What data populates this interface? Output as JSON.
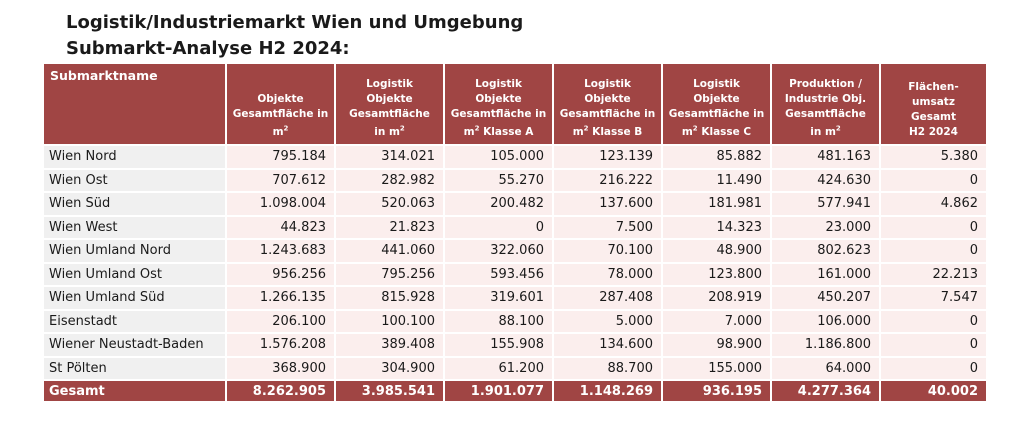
{
  "title": {
    "line1": "Logistik/Industriemarkt Wien und Umgebung",
    "line2": "Submarkt-Analyse H2 2024:"
  },
  "table": {
    "headers": [
      {
        "lines": [
          "Submarktname"
        ]
      },
      {
        "lines": [
          "Objekte",
          "Gesamtfläche in",
          "m²"
        ]
      },
      {
        "lines": [
          "Logistik",
          "Objekte",
          "Gesamtfläche",
          "in m²"
        ]
      },
      {
        "lines": [
          "Logistik",
          "Objekte",
          "Gesamtfläche in",
          "m² Klasse A"
        ]
      },
      {
        "lines": [
          "Logistik",
          "Objekte",
          "Gesamtfläche in",
          "m² Klasse B"
        ]
      },
      {
        "lines": [
          "Logistik",
          "Objekte",
          "Gesamtfläche in",
          "m² Klasse C"
        ]
      },
      {
        "lines": [
          "Produktion /",
          "Industrie Obj.",
          "Gesamtfläche",
          "in m²"
        ]
      },
      {
        "lines": [
          "Flächen-",
          "umsatz",
          "Gesamt",
          "H2 2024"
        ]
      }
    ],
    "rows": [
      [
        "Wien Nord",
        "795.184",
        "314.021",
        "105.000",
        "123.139",
        "85.882",
        "481.163",
        "5.380"
      ],
      [
        "Wien Ost",
        "707.612",
        "282.982",
        "55.270",
        "216.222",
        "11.490",
        "424.630",
        "0"
      ],
      [
        "Wien Süd",
        "1.098.004",
        "520.063",
        "200.482",
        "137.600",
        "181.981",
        "577.941",
        "4.862"
      ],
      [
        "Wien West",
        "44.823",
        "21.823",
        "0",
        "7.500",
        "14.323",
        "23.000",
        "0"
      ],
      [
        "Wien Umland Nord",
        "1.243.683",
        "441.060",
        "322.060",
        "70.100",
        "48.900",
        "802.623",
        "0"
      ],
      [
        "Wien Umland Ost",
        "956.256",
        "795.256",
        "593.456",
        "78.000",
        "123.800",
        "161.000",
        "22.213"
      ],
      [
        "Wien Umland Süd",
        "1.266.135",
        "815.928",
        "319.601",
        "287.408",
        "208.919",
        "450.207",
        "7.547"
      ],
      [
        "Eisenstadt",
        "206.100",
        "100.100",
        "88.100",
        "5.000",
        "7.000",
        "106.000",
        "0"
      ],
      [
        "Wiener Neustadt-Baden",
        "1.576.208",
        "389.408",
        "155.908",
        "134.600",
        "98.900",
        "1.186.800",
        "0"
      ],
      [
        "St Pölten",
        "368.900",
        "304.900",
        "61.200",
        "88.700",
        "155.000",
        "64.000",
        "0"
      ]
    ],
    "total": [
      "Gesamt",
      "8.262.905",
      "3.985.541",
      "1.901.077",
      "1.148.269",
      "936.195",
      "4.277.364",
      "40.002"
    ]
  }
}
